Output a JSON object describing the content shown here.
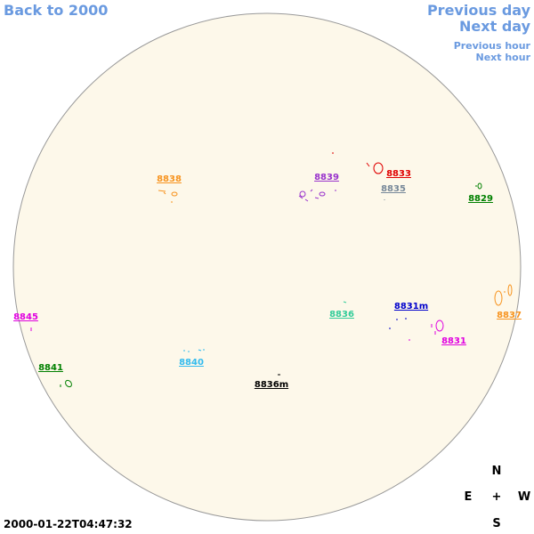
{
  "navigation": {
    "back": "Back to 2000",
    "previous_day": "Previous day",
    "next_day": "Next day",
    "previous_hour": "Previous hour",
    "next_hour": "Next hour"
  },
  "regions": [
    "8838",
    "8839",
    "8833",
    "8835",
    "8829",
    "8837",
    "8836",
    "8831m",
    "8831",
    "8845",
    "8841",
    "8840",
    "8836m"
  ],
  "compass": {
    "north": "N",
    "east": "E",
    "center": "+",
    "west": "W",
    "south": "S"
  },
  "timestamp": "2000-01-22T04:47:32"
}
